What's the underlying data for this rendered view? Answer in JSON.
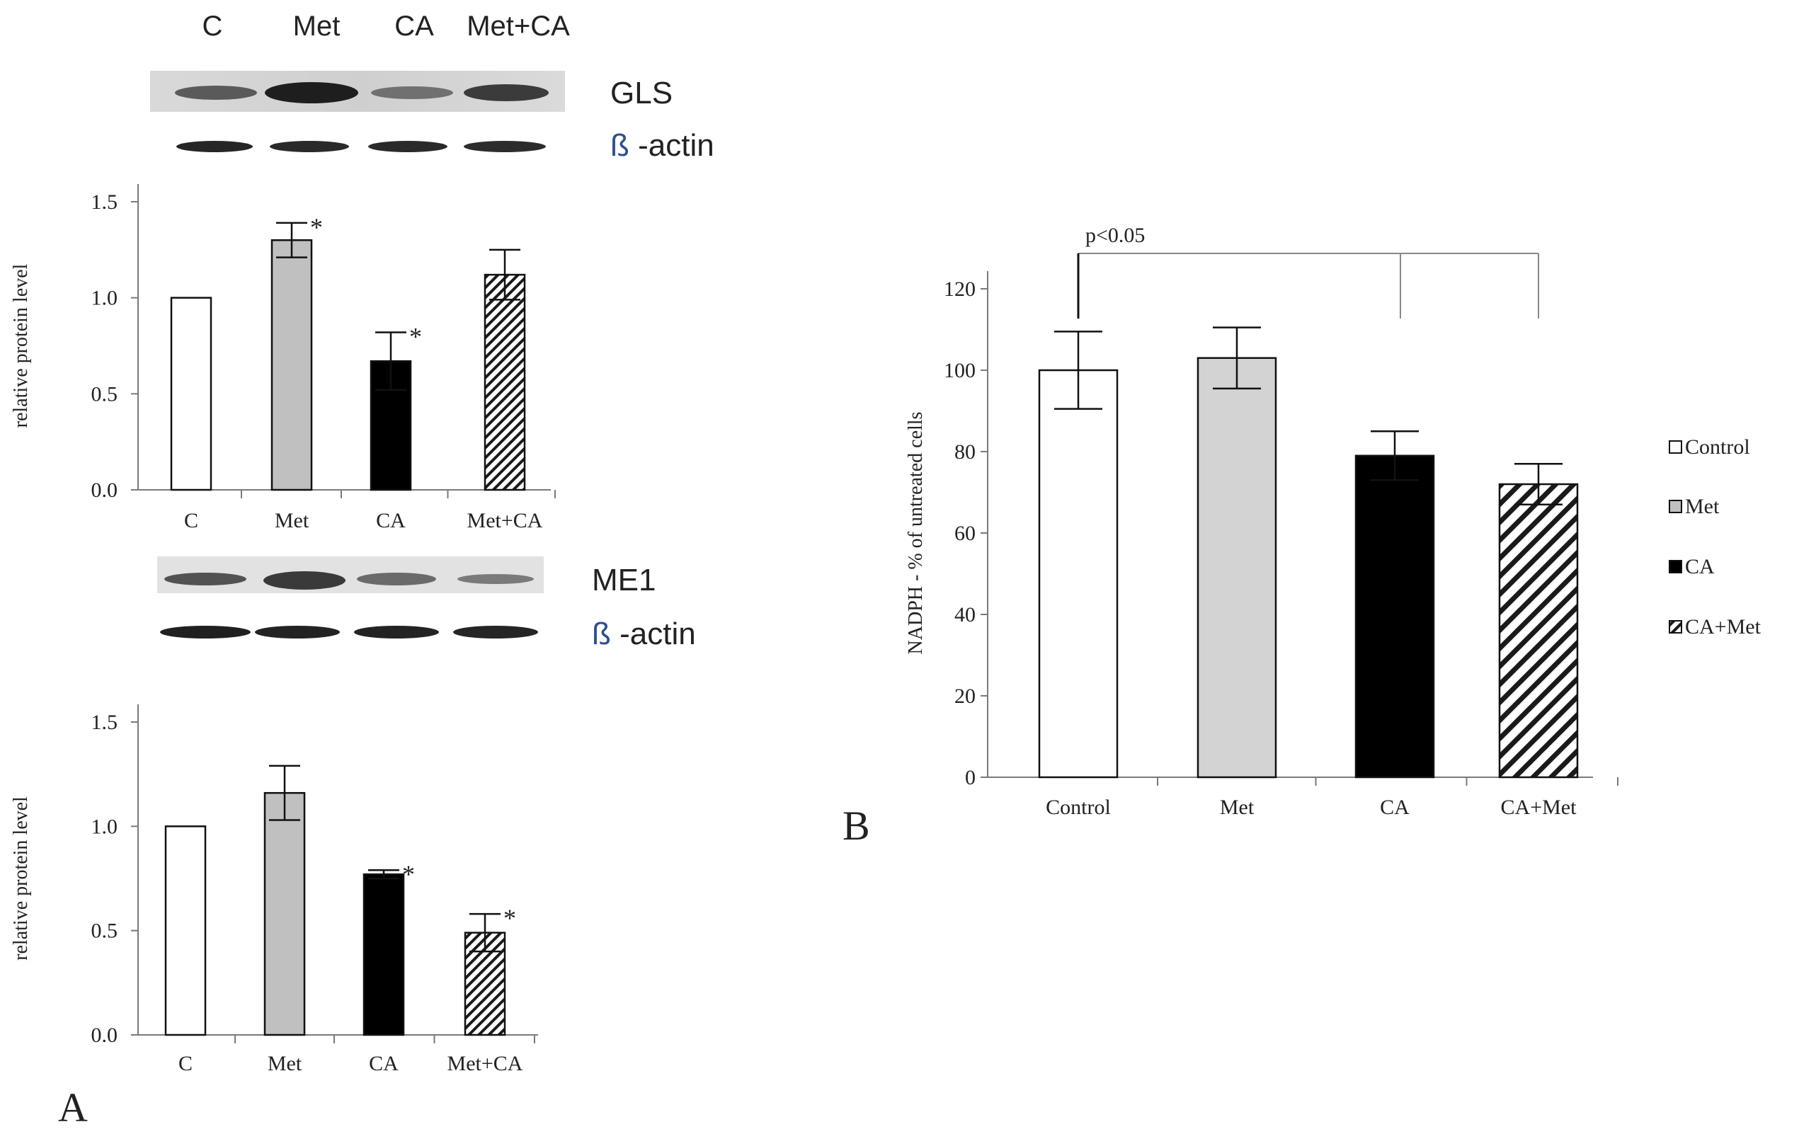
{
  "panel_labels": {
    "a": "A",
    "b": "B"
  },
  "blots": {
    "lanes": [
      "C",
      "Met",
      "CA",
      "Met+CA"
    ],
    "top": {
      "protein": "GLS",
      "loading_beta": "ß",
      "loading_rest": " -actin"
    },
    "bottom": {
      "protein": "ME1",
      "loading_beta": "ß",
      "loading_rest": " -actin"
    }
  },
  "colors": {
    "control": "#ffffff",
    "met": "#c0c0c0",
    "ca": "#000000",
    "combo": "hatched"
  },
  "chart_data": [
    {
      "id": "gls",
      "type": "bar",
      "title": "",
      "xlabel": "",
      "ylabel": "relative protein level",
      "categories": [
        "C",
        "Met",
        "CA",
        "Met+CA"
      ],
      "values": [
        1.0,
        1.3,
        0.67,
        1.12
      ],
      "errors": [
        0,
        0.09,
        0.15,
        0.13
      ],
      "significance": [
        "",
        "*",
        "*",
        ""
      ],
      "ylim": [
        0,
        1.5
      ],
      "yticks": [
        "0.0",
        "0.5",
        "1.0",
        "1.5"
      ],
      "fills": [
        "white",
        "gray",
        "black",
        "hatch"
      ]
    },
    {
      "id": "me1",
      "type": "bar",
      "title": "",
      "xlabel": "",
      "ylabel": "relative protein level",
      "categories": [
        "C",
        "Met",
        "CA",
        "Met+CA"
      ],
      "values": [
        1.0,
        1.16,
        0.77,
        0.49
      ],
      "errors": [
        0,
        0.13,
        0.02,
        0.09
      ],
      "significance": [
        "",
        "",
        "*",
        "*"
      ],
      "ylim": [
        0,
        1.5
      ],
      "yticks": [
        "0.0",
        "0.5",
        "1.0",
        "1.5"
      ],
      "fills": [
        "white",
        "gray",
        "black",
        "hatch"
      ]
    },
    {
      "id": "nadph",
      "type": "bar",
      "title": "",
      "xlabel": "",
      "ylabel": "NADPH - % of untreated cells",
      "categories": [
        "Control",
        "Met",
        "CA",
        "CA+Met"
      ],
      "values": [
        100,
        103,
        79,
        72
      ],
      "errors": [
        9.5,
        7.5,
        6,
        5
      ],
      "ylim": [
        0,
        120
      ],
      "yticks": [
        "0",
        "20",
        "40",
        "60",
        "80",
        "100",
        "120"
      ],
      "fills": [
        "white",
        "gray",
        "black",
        "hatch"
      ],
      "legend": [
        "Control",
        "Met",
        "CA",
        "CA+Met"
      ],
      "legend_position": "right",
      "annotation": "p<0.05"
    }
  ]
}
